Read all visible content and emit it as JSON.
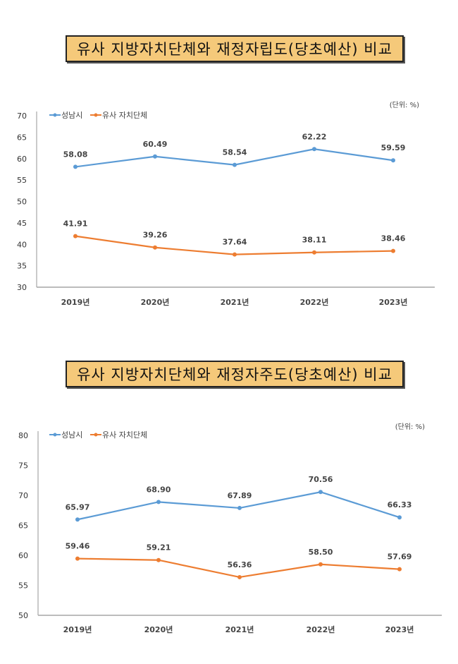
{
  "colors": {
    "seongnam": "#5b9bd5",
    "similar": "#ed7d31",
    "axis": "#a6a6a6",
    "title_bg": "#f5c97a"
  },
  "chart_data": [
    {
      "type": "line",
      "title": "유사 지방자치단체와 재정자립도(당초예산) 비교",
      "unit_label": "(단위: %)",
      "categories": [
        "2019년",
        "2020년",
        "2021년",
        "2022년",
        "2023년"
      ],
      "ylim": [
        30,
        70
      ],
      "yticks": [
        30,
        35,
        40,
        45,
        50,
        55,
        60,
        65,
        70
      ],
      "legend_position": "top-left",
      "grid": false,
      "series": [
        {
          "name": "성남시",
          "values": [
            58.08,
            60.49,
            58.54,
            62.22,
            59.59
          ],
          "labels": [
            "58.08",
            "60.49",
            "58.54",
            "62.22",
            "59.59"
          ]
        },
        {
          "name": "유사 자치단체",
          "values": [
            41.91,
            39.26,
            37.64,
            38.11,
            38.46
          ],
          "labels": [
            "41.91",
            "39.26",
            "37.64",
            "38.11",
            "38.46"
          ]
        }
      ]
    },
    {
      "type": "line",
      "title": "유사 지방자치단체와 재정자주도(당초예산) 비교",
      "unit_label": "(단위: %)",
      "categories": [
        "2019년",
        "2020년",
        "2021년",
        "2022년",
        "2023년"
      ],
      "ylim": [
        50,
        80
      ],
      "yticks": [
        50,
        55,
        60,
        65,
        70,
        75,
        80
      ],
      "legend_position": "top-left",
      "grid": false,
      "series": [
        {
          "name": "성남시",
          "values": [
            65.97,
            68.9,
            67.89,
            70.56,
            66.33
          ],
          "labels": [
            "65.97",
            "68.90",
            "67.89",
            "70.56",
            "66.33"
          ]
        },
        {
          "name": "유사 자치단체",
          "values": [
            59.46,
            59.21,
            56.36,
            58.5,
            57.69
          ],
          "labels": [
            "59.46",
            "59.21",
            "56.36",
            "58.50",
            "57.69"
          ]
        }
      ]
    }
  ]
}
